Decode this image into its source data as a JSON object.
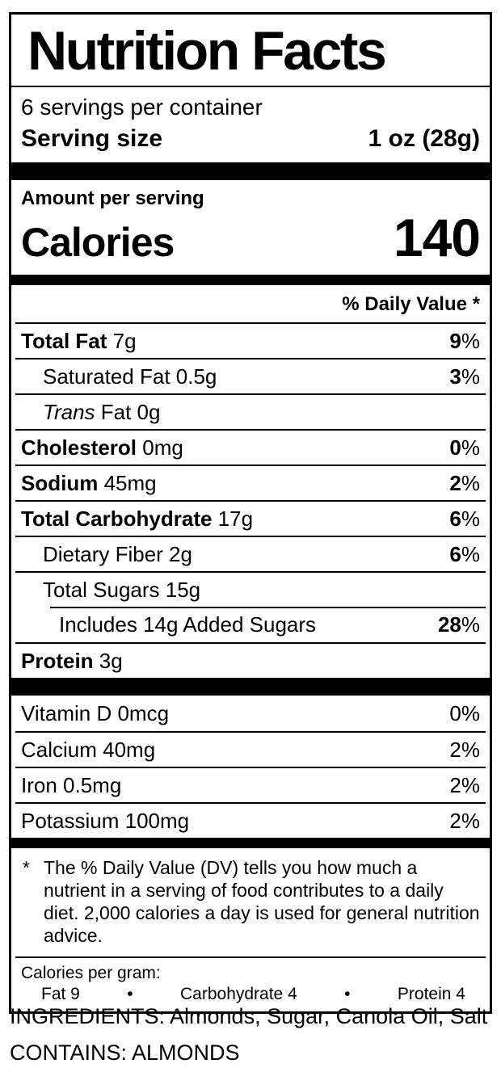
{
  "label": {
    "title": "Nutrition Facts",
    "servings_per_container": "6 servings per container",
    "serving_size_label": "Serving size",
    "serving_size_value": "1 oz (28g)",
    "amount_per_serving": "Amount per serving",
    "calories_label": "Calories",
    "calories_value": "140",
    "daily_value_header": "% Daily Value *",
    "percent_sign": "%",
    "nutrients": [
      {
        "b": "Total Fat",
        "r": " 7g",
        "dv": "9"
      },
      {
        "b": "",
        "r": "Saturated Fat 0.5g",
        "dv": "3"
      },
      {
        "i": "Trans",
        "r": " Fat 0g",
        "dv": ""
      },
      {
        "b": "Cholesterol",
        "r": " 0mg",
        "dv": "0"
      },
      {
        "b": "Sodium",
        "r": " 45mg",
        "dv": "2"
      },
      {
        "b": "Total Carbohydrate",
        "r": " 17g",
        "dv": "6"
      },
      {
        "b": "",
        "r": "Dietary Fiber 2g",
        "dv": "6"
      },
      {
        "b": "",
        "r": "Total Sugars 15g",
        "dv": ""
      },
      {
        "b": "",
        "r": "Includes 14g Added Sugars",
        "dv": "28"
      },
      {
        "b": "Protein",
        "r": " 3g",
        "dv": ""
      }
    ],
    "micronutrients": [
      {
        "r": "Vitamin D 0mcg",
        "dv": "0"
      },
      {
        "r": "Calcium 40mg",
        "dv": "2"
      },
      {
        "r": "Iron 0.5mg",
        "dv": "2"
      },
      {
        "r": "Potassium 100mg",
        "dv": "2"
      }
    ],
    "footnote_marker": "*",
    "footnote_text": "The % Daily Value (DV) tells you how much a nutrient in a serving of food contributes to a daily diet. 2,000 calories a day is used for general nutrition advice.",
    "calories_per_gram": {
      "heading": "Calories per gram:",
      "fat": "Fat 9",
      "carbohydrate": "Carbohydrate 4",
      "protein": "Protein 4",
      "bullet": "•"
    }
  },
  "below_label": {
    "ingredients": "INGREDIENTS: Almonds, Sugar, Canola Oil, Salt",
    "contains": "CONTAINS: ALMONDS"
  },
  "colors": {
    "ink": "#000000",
    "background": "#ffffff"
  }
}
